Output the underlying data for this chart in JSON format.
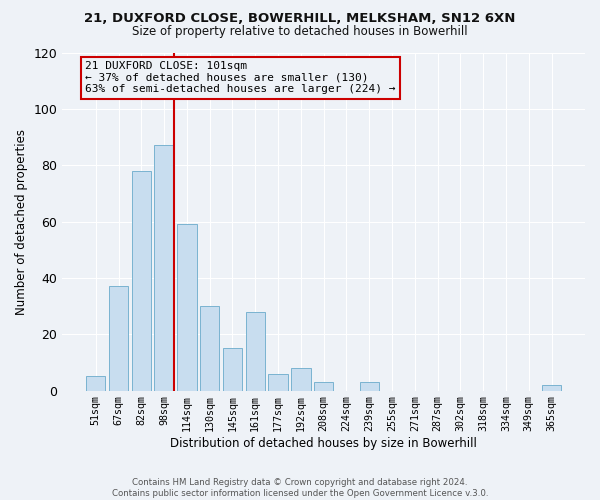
{
  "title1": "21, DUXFORD CLOSE, BOWERHILL, MELKSHAM, SN12 6XN",
  "title2": "Size of property relative to detached houses in Bowerhill",
  "xlabel": "Distribution of detached houses by size in Bowerhill",
  "ylabel": "Number of detached properties",
  "bar_labels": [
    "51sqm",
    "67sqm",
    "82sqm",
    "98sqm",
    "114sqm",
    "130sqm",
    "145sqm",
    "161sqm",
    "177sqm",
    "192sqm",
    "208sqm",
    "224sqm",
    "239sqm",
    "255sqm",
    "271sqm",
    "287sqm",
    "302sqm",
    "318sqm",
    "334sqm",
    "349sqm",
    "365sqm"
  ],
  "bar_values": [
    5,
    37,
    78,
    87,
    59,
    30,
    15,
    28,
    6,
    8,
    3,
    0,
    3,
    0,
    0,
    0,
    0,
    0,
    0,
    0,
    2
  ],
  "bar_color": "#c8ddef",
  "bar_edge_color": "#7ab3d0",
  "vline_color": "#cc0000",
  "annotation_line1": "21 DUXFORD CLOSE: 101sqm",
  "annotation_line2": "← 37% of detached houses are smaller (130)",
  "annotation_line3": "63% of semi-detached houses are larger (224) →",
  "annotation_box_color": "#cc0000",
  "ylim": [
    0,
    120
  ],
  "yticks": [
    0,
    20,
    40,
    60,
    80,
    100,
    120
  ],
  "footer_text": "Contains HM Land Registry data © Crown copyright and database right 2024.\nContains public sector information licensed under the Open Government Licence v.3.0.",
  "bg_color": "#eef2f7"
}
